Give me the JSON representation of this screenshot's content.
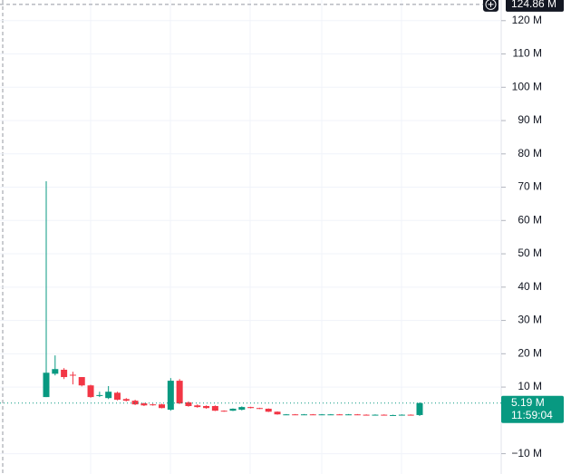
{
  "chart_data": {
    "type": "candlestick",
    "series": {
      "open": [
        7.0,
        14.0,
        15.2,
        13.7,
        13.0,
        10.5,
        7.5,
        6.7,
        8.3,
        6.4,
        5.9,
        5.1,
        4.8,
        4.8,
        3.2,
        11.9,
        5.4,
        4.5,
        4.3,
        4.3,
        2.9,
        2.9,
        3.2,
        4.0,
        3.7,
        3.5,
        2.6,
        1.8,
        1.8,
        1.7,
        1.8,
        1.7,
        1.8,
        1.8,
        1.7,
        1.8,
        1.7,
        1.6,
        1.7,
        1.6,
        1.6,
        1.7,
        1.6
      ],
      "high": [
        71.8,
        19.5,
        15.7,
        14.6,
        13.0,
        10.7,
        8.6,
        10.3,
        8.6,
        6.7,
        6.2,
        5.3,
        5.0,
        5.0,
        12.7,
        12.4,
        5.7,
        4.8,
        4.5,
        4.5,
        3.0,
        3.6,
        4.2,
        4.1,
        3.8,
        3.6,
        2.7,
        1.9,
        1.9,
        1.9,
        1.9,
        1.9,
        1.9,
        1.9,
        1.9,
        1.9,
        1.8,
        1.8,
        1.8,
        1.7,
        1.8,
        1.8,
        5.4
      ],
      "low": [
        7.0,
        13.5,
        12.4,
        10.8,
        10.2,
        6.8,
        7.0,
        6.4,
        6.0,
        5.7,
        4.6,
        4.3,
        4.4,
        3.6,
        2.9,
        4.9,
        4.1,
        3.8,
        3.5,
        2.8,
        2.6,
        2.8,
        3.0,
        3.6,
        3.4,
        2.5,
        1.7,
        1.7,
        1.6,
        1.6,
        1.6,
        1.6,
        1.7,
        1.6,
        1.6,
        1.6,
        1.5,
        1.5,
        1.5,
        1.5,
        1.5,
        1.5,
        1.3
      ],
      "close": [
        14.3,
        15.4,
        13.0,
        13.5,
        10.5,
        7.0,
        7.6,
        8.6,
        6.2,
        5.9,
        4.8,
        4.5,
        4.6,
        3.7,
        11.9,
        5.1,
        4.3,
        4.0,
        3.7,
        2.9,
        2.8,
        3.5,
        4.0,
        3.7,
        3.5,
        2.6,
        1.8,
        1.8,
        1.7,
        1.8,
        1.7,
        1.8,
        1.8,
        1.7,
        1.8,
        1.7,
        1.6,
        1.7,
        1.6,
        1.6,
        1.7,
        1.6,
        5.19
      ]
    },
    "up_color": "#089981",
    "down_color": "#f23645",
    "ylim": [
      -16.1,
      126.2
    ],
    "yticks": [
      {
        "value": -10,
        "label": "−10 M"
      },
      {
        "value": 10,
        "label": "10 M"
      },
      {
        "value": 20,
        "label": "20 M"
      },
      {
        "value": 30,
        "label": "30 M"
      },
      {
        "value": 40,
        "label": "40 M"
      },
      {
        "value": 50,
        "label": "50 M"
      },
      {
        "value": 60,
        "label": "60 M"
      },
      {
        "value": 70,
        "label": "70 M"
      },
      {
        "value": 80,
        "label": "80 M"
      },
      {
        "value": 90,
        "label": "90 M"
      },
      {
        "value": 100,
        "label": "100 M"
      },
      {
        "value": 110,
        "label": "110 M"
      },
      {
        "value": 120,
        "label": "120 M"
      }
    ],
    "grid": true,
    "last_price": {
      "value": 5.19,
      "label": "5.19 M"
    },
    "countdown": "11:59:04",
    "crosshair": {
      "value": 124.86,
      "label": "124.86 M"
    }
  }
}
